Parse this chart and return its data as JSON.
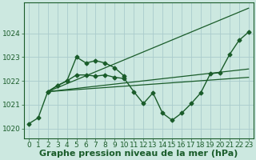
{
  "background_color": "#cce8e0",
  "grid_color": "#aacccc",
  "line_color": "#1a5c2a",
  "marker_color": "#1a5c2a",
  "xlabel": "Graphe pression niveau de la mer (hPa)",
  "xlabel_fontsize": 8,
  "tick_fontsize": 6.5,
  "xlim": [
    -0.5,
    23.5
  ],
  "ylim": [
    1019.6,
    1025.3
  ],
  "yticks": [
    1020,
    1021,
    1022,
    1023,
    1024
  ],
  "xticks": [
    0,
    1,
    2,
    3,
    4,
    5,
    6,
    7,
    8,
    9,
    10,
    11,
    12,
    13,
    14,
    15,
    16,
    17,
    18,
    19,
    20,
    21,
    22,
    23
  ],
  "series_main": {
    "x": [
      0,
      1,
      2,
      3,
      4,
      5,
      6,
      7,
      8,
      9,
      10,
      11,
      12,
      13,
      14,
      15,
      16,
      17,
      18,
      19,
      20,
      21,
      22,
      23
    ],
    "y": [
      1020.2,
      1020.45,
      1021.55,
      1021.8,
      1022.0,
      1022.25,
      1022.25,
      1022.2,
      1022.25,
      1022.15,
      1022.1,
      1021.55,
      1021.05,
      1021.5,
      1020.65,
      1020.35,
      1020.65,
      1021.05,
      1021.5,
      1022.3,
      1022.35,
      1023.1,
      1023.7,
      1024.05
    ]
  },
  "series_short": {
    "x": [
      2,
      3,
      4,
      5,
      6,
      7,
      8,
      9,
      10
    ],
    "y": [
      1021.55,
      1021.8,
      1022.0,
      1023.0,
      1022.75,
      1022.85,
      1022.75,
      1022.55,
      1022.2
    ]
  },
  "trend_lines": [
    {
      "x": [
        2,
        23
      ],
      "y": [
        1021.55,
        1022.15
      ]
    },
    {
      "x": [
        2,
        23
      ],
      "y": [
        1021.55,
        1022.5
      ]
    },
    {
      "x": [
        2,
        23
      ],
      "y": [
        1021.55,
        1025.05
      ]
    }
  ]
}
